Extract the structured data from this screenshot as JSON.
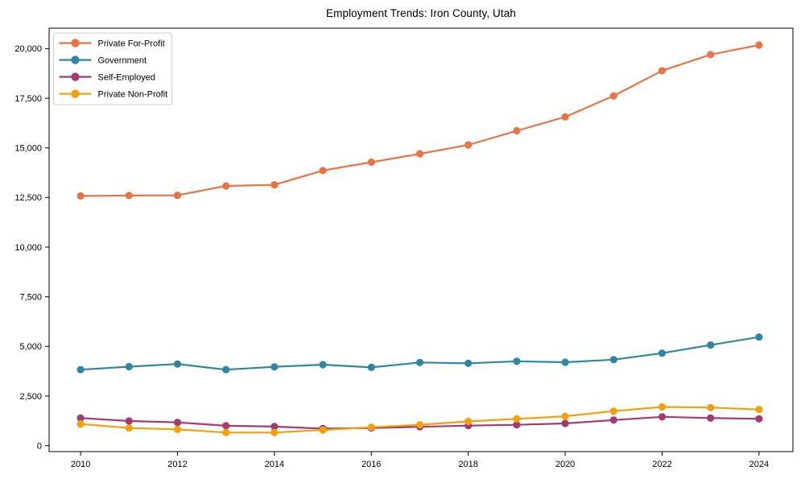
{
  "page": {
    "background": "#ffffff",
    "text_color": "#000000",
    "axis_color": "#000000",
    "legend_border_color": "#cccccc",
    "legend_background": "#ffffff"
  },
  "chart_data": {
    "type": "line",
    "title": "Employment Trends: Iron County, Utah",
    "xlabel": "",
    "ylabel": "",
    "grid": false,
    "legend_position": "upper-left",
    "marker": "circle",
    "x": [
      2010,
      2011,
      2012,
      2013,
      2014,
      2015,
      2016,
      2017,
      2018,
      2019,
      2020,
      2021,
      2022,
      2023,
      2024
    ],
    "xticks": [
      2010,
      2012,
      2014,
      2016,
      2018,
      2020,
      2022,
      2024
    ],
    "yticks": [
      0,
      2500,
      5000,
      7500,
      10000,
      12500,
      15000,
      17500,
      20000
    ],
    "ytick_labels": [
      "0",
      "2,500",
      "5,000",
      "7,500",
      "10,000",
      "12,500",
      "15,000",
      "17,500",
      "20,000"
    ],
    "xlim": [
      2009.35,
      2024.7
    ],
    "ylim": [
      -300,
      21030
    ],
    "series": [
      {
        "name": "Private For-Profit",
        "color": "#E87446",
        "values": [
          12580,
          12600,
          12610,
          13080,
          13140,
          13860,
          14280,
          14700,
          15150,
          15860,
          16560,
          17620,
          18890,
          19700,
          20180
        ]
      },
      {
        "name": "Government",
        "color": "#2F85A4",
        "values": [
          3830,
          3980,
          4110,
          3830,
          3970,
          4080,
          3940,
          4190,
          4150,
          4250,
          4200,
          4330,
          4660,
          5070,
          5470
        ]
      },
      {
        "name": "Self-Employed",
        "color": "#A23B72",
        "values": [
          1390,
          1240,
          1170,
          1000,
          960,
          860,
          890,
          950,
          1010,
          1050,
          1120,
          1290,
          1450,
          1390,
          1350
        ]
      },
      {
        "name": "Private Non-Profit",
        "color": "#F4A00C",
        "values": [
          1090,
          890,
          820,
          660,
          660,
          790,
          930,
          1050,
          1220,
          1350,
          1480,
          1740,
          1950,
          1920,
          1820
        ]
      }
    ]
  }
}
